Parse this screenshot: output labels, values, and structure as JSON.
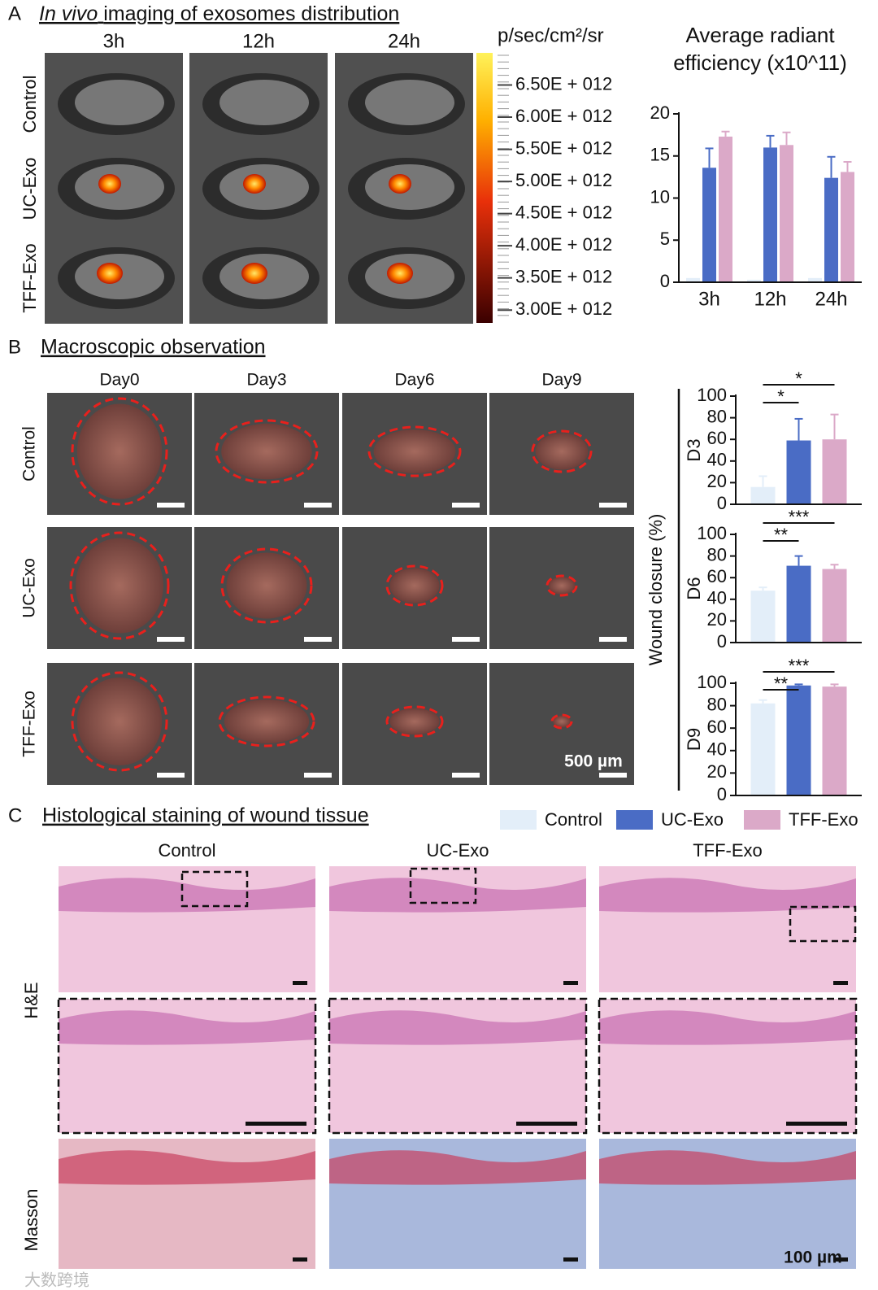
{
  "panel_a": {
    "label": "A",
    "title_italic": "In vivo",
    "title": "imaging of exosomes distribution",
    "timepoints": [
      "3h",
      "12h",
      "24h"
    ],
    "rows": [
      "Control",
      "UC-Exo",
      "TFF-Exo"
    ],
    "colorbar": {
      "unit": "p/sec/cm²/sr",
      "lim": [
        2800000000000.0,
        7000000000000.0
      ],
      "ticks": [
        {
          "value": 6500000000000.0,
          "label": "6.50E + 012"
        },
        {
          "value": 6000000000000.0,
          "label": "6.00E + 012"
        },
        {
          "value": 5500000000000.0,
          "label": "5.50E + 012"
        },
        {
          "value": 5000000000000.0,
          "label": "5.00E + 012"
        },
        {
          "value": 4500000000000.0,
          "label": "4.50E + 012"
        },
        {
          "value": 4000000000000.0,
          "label": "4.00E + 012"
        },
        {
          "value": 3500000000000.0,
          "label": "3.50E + 012"
        },
        {
          "value": 3000000000000.0,
          "label": "3.00E + 012"
        }
      ]
    }
  },
  "panel_b": {
    "label": "B",
    "title": "Macroscopic observation",
    "days": [
      "Day0",
      "Day3",
      "Day6",
      "Day9"
    ],
    "rows": [
      "Control",
      "UC-Exo",
      "TFF-Exo"
    ],
    "scale_bar": "500 µm",
    "ylabel": "Wound closure (%)"
  },
  "panel_c": {
    "label": "C",
    "title": "Histological staining of wound tissue",
    "columns": [
      "Control",
      "UC-Exo",
      "TFF-Exo"
    ],
    "rows": [
      "H&E",
      "Masson"
    ],
    "scale_bar": "100 µm"
  },
  "watermark": "大数跨境",
  "chart_data": [
    {
      "type": "bar",
      "title": "Average radiant efficiency (x10^11)",
      "categories": [
        "3h",
        "12h",
        "24h"
      ],
      "ylim": [
        0,
        20
      ],
      "yticks": [
        0,
        5,
        10,
        15,
        20
      ],
      "series": [
        {
          "name": "Control",
          "color": "#e3eef9",
          "values": [
            0.5,
            0.3,
            0.5
          ],
          "errors": [
            0,
            0,
            0
          ]
        },
        {
          "name": "UC-Exo",
          "color": "#4a6cc5",
          "values": [
            13.6,
            16.0,
            12.4
          ],
          "errors": [
            2.3,
            1.4,
            2.5
          ]
        },
        {
          "name": "TFF-Exo",
          "color": "#dba9c8",
          "values": [
            17.3,
            16.3,
            13.1
          ],
          "errors": [
            0.6,
            1.5,
            1.2
          ]
        }
      ]
    },
    {
      "type": "bar",
      "title": "D3",
      "ylim": [
        0,
        100
      ],
      "yticks": [
        0,
        20,
        40,
        60,
        80,
        100
      ],
      "series": [
        {
          "name": "Control",
          "color": "#e3eef9",
          "values": [
            16
          ],
          "errors": [
            10
          ]
        },
        {
          "name": "UC-Exo",
          "color": "#4a6cc5",
          "values": [
            59
          ],
          "errors": [
            20
          ]
        },
        {
          "name": "TFF-Exo",
          "color": "#dba9c8",
          "values": [
            60
          ],
          "errors": [
            23
          ]
        }
      ],
      "annotations": [
        {
          "text": "*",
          "from": 0,
          "to": 1
        },
        {
          "text": "*",
          "from": 0,
          "to": 2
        }
      ]
    },
    {
      "type": "bar",
      "title": "D6",
      "ylim": [
        0,
        100
      ],
      "yticks": [
        0,
        20,
        40,
        60,
        80,
        100
      ],
      "series": [
        {
          "name": "Control",
          "color": "#e3eef9",
          "values": [
            48
          ],
          "errors": [
            3
          ]
        },
        {
          "name": "UC-Exo",
          "color": "#4a6cc5",
          "values": [
            71
          ],
          "errors": [
            9
          ]
        },
        {
          "name": "TFF-Exo",
          "color": "#dba9c8",
          "values": [
            68
          ],
          "errors": [
            4
          ]
        }
      ],
      "annotations": [
        {
          "text": "**",
          "from": 0,
          "to": 1
        },
        {
          "text": "***",
          "from": 0,
          "to": 2
        }
      ]
    },
    {
      "type": "bar",
      "title": "D9",
      "ylim": [
        0,
        100
      ],
      "yticks": [
        0,
        20,
        40,
        60,
        80,
        100
      ],
      "series": [
        {
          "name": "Control",
          "color": "#e3eef9",
          "values": [
            82
          ],
          "errors": [
            3
          ]
        },
        {
          "name": "UC-Exo",
          "color": "#4a6cc5",
          "values": [
            98
          ],
          "errors": [
            1
          ]
        },
        {
          "name": "TFF-Exo",
          "color": "#dba9c8",
          "values": [
            97
          ],
          "errors": [
            2
          ]
        }
      ],
      "annotations": [
        {
          "text": "**",
          "from": 0,
          "to": 1
        },
        {
          "text": "***",
          "from": 0,
          "to": 2
        }
      ]
    }
  ]
}
